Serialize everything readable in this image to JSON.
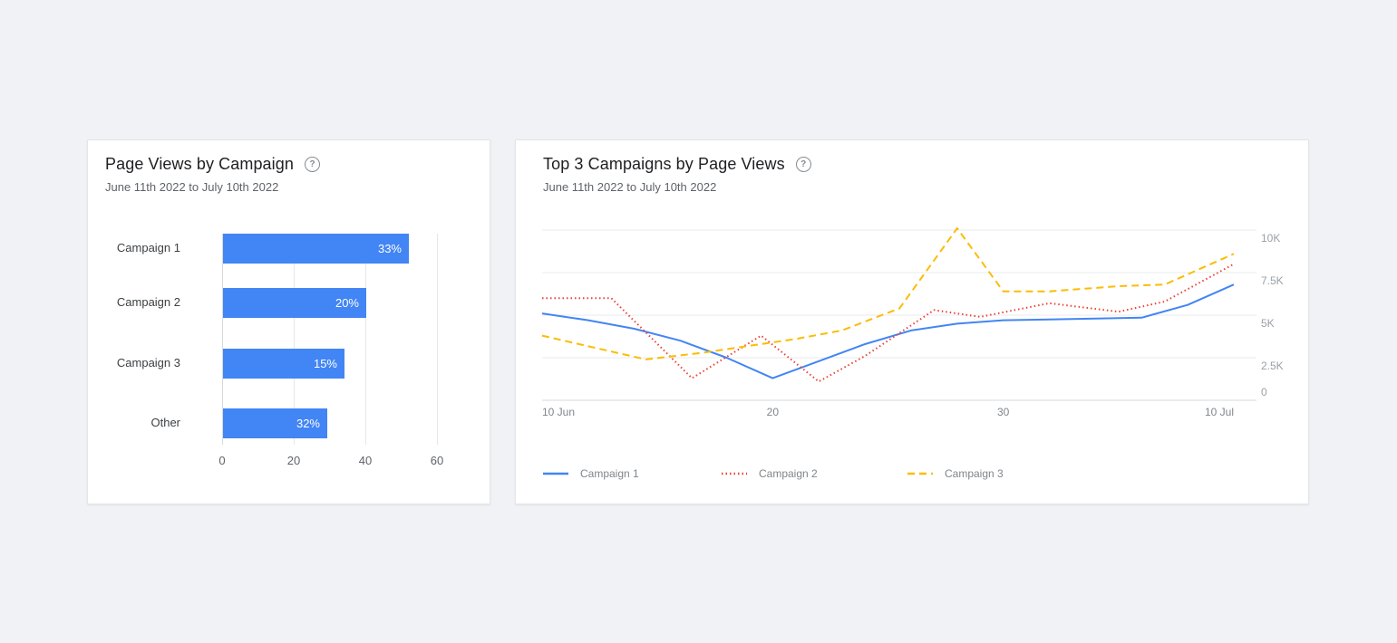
{
  "page": {
    "background_color": "#f0f2f5",
    "card_background": "#ffffff"
  },
  "cards": [
    {
      "title": "Page Views by Campaign",
      "subtitle": "June 11th 2022 to July 10th 2022",
      "help_icon": "help-circle"
    },
    {
      "title": "Top 3 Campaigns by Page Views",
      "subtitle": "June 11th 2022 to July 10th 2022",
      "help_icon": "help-circle"
    }
  ],
  "chart_data": [
    {
      "type": "bar",
      "orientation": "horizontal",
      "title": "Page Views by Campaign",
      "categories": [
        "Campaign 1",
        "Campaign 2",
        "Campaign 3",
        "Other"
      ],
      "values": [
        52,
        40,
        34,
        29
      ],
      "bar_labels": [
        "33%",
        "20%",
        "15%",
        "32%"
      ],
      "bar_color": "#4285f4",
      "bar_label_color": "#ffffff",
      "xlim": [
        0,
        60
      ],
      "x_ticks": [
        0,
        20,
        40,
        60
      ],
      "grid": "vertical"
    },
    {
      "type": "line",
      "title": "Top 3 Campaigns by Page Views",
      "xlim": [
        0,
        30
      ],
      "ylim": [
        0,
        10000
      ],
      "x_axis_unit": "date (10 Jun - 10 Jul)",
      "x_ticks": [
        {
          "day": 0,
          "label": "10 Jun"
        },
        {
          "day": 10,
          "label": "20"
        },
        {
          "day": 20,
          "label": "30"
        },
        {
          "day": 30,
          "label": "10 Jul"
        }
      ],
      "y_ticks": [
        {
          "value": 0,
          "label": "0"
        },
        {
          "value": 2500,
          "label": "2.5K"
        },
        {
          "value": 5000,
          "label": "5K"
        },
        {
          "value": 7500,
          "label": "7.5K"
        },
        {
          "value": 10000,
          "label": "10K"
        }
      ],
      "grid": "horizontal",
      "legend_position": "bottom",
      "series": [
        {
          "name": "Campaign 1",
          "color": "#4285f4",
          "style": "solid",
          "points": [
            [
              0,
              5100
            ],
            [
              2,
              4700
            ],
            [
              4,
              4200
            ],
            [
              6,
              3500
            ],
            [
              8,
              2500
            ],
            [
              10,
              1300
            ],
            [
              12,
              2300
            ],
            [
              14,
              3300
            ],
            [
              16,
              4100
            ],
            [
              18,
              4500
            ],
            [
              20,
              4700
            ],
            [
              22,
              4750
            ],
            [
              24,
              4800
            ],
            [
              26,
              4850
            ],
            [
              28,
              5600
            ],
            [
              30,
              6800
            ]
          ]
        },
        {
          "name": "Campaign 2",
          "color": "#ea4335",
          "style": "dotted",
          "points": [
            [
              0,
              6000
            ],
            [
              3,
              6000
            ],
            [
              6.5,
              1300
            ],
            [
              9.5,
              3800
            ],
            [
              12,
              1100
            ],
            [
              14,
              2600
            ],
            [
              17,
              5300
            ],
            [
              19,
              4900
            ],
            [
              22,
              5700
            ],
            [
              25,
              5200
            ],
            [
              27,
              5800
            ],
            [
              30,
              8000
            ]
          ]
        },
        {
          "name": "Campaign 3",
          "color": "#fbbc04",
          "style": "dashed",
          "points": [
            [
              0,
              3800
            ],
            [
              4.5,
              2400
            ],
            [
              7,
              2800
            ],
            [
              9,
              3200
            ],
            [
              11,
              3600
            ],
            [
              13,
              4100
            ],
            [
              15.5,
              5400
            ],
            [
              18,
              10100
            ],
            [
              20,
              6400
            ],
            [
              22,
              6400
            ],
            [
              25,
              6700
            ],
            [
              27,
              6800
            ],
            [
              30,
              8600
            ]
          ]
        }
      ]
    }
  ]
}
